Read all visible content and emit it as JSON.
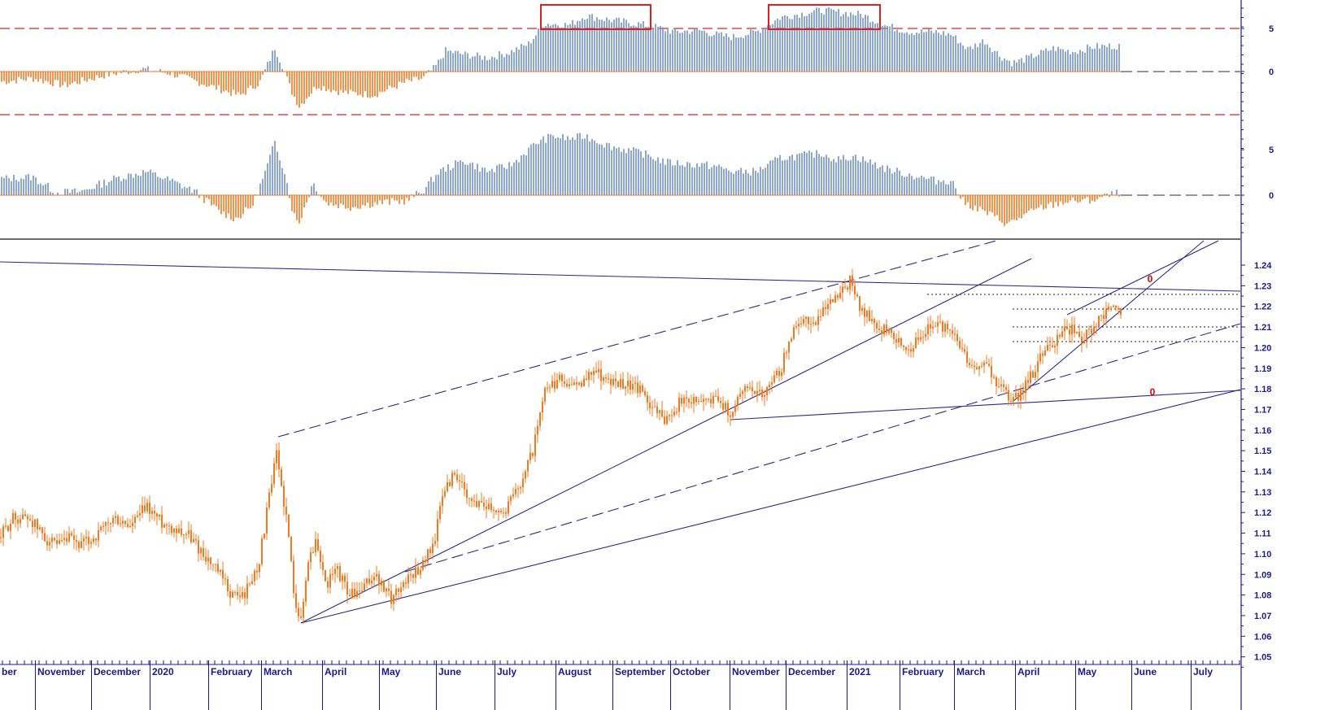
{
  "colors": {
    "positive_bar": "#6f93c4",
    "negative_bar": "#f07a1f",
    "price": "#f07a1f",
    "trendline": "#2a2a8a",
    "threshold": "#e02020",
    "highlight_box": "#e02020",
    "axis_text": "#1a1a8c"
  },
  "chart_data": [
    {
      "type": "bar",
      "panel": "oscillator-1",
      "title": "",
      "yticks": [
        5,
        0
      ],
      "threshold_lines": [
        5,
        -5
      ],
      "zero_line": "dashed",
      "ylim": [
        -8,
        8
      ],
      "highlight_boxes": [
        {
          "from": "August",
          "to": "September"
        },
        {
          "from": "December",
          "to": "January"
        }
      ],
      "anchors": [
        [
          0,
          -1.2
        ],
        [
          40,
          -0.8
        ],
        [
          80,
          -1.6
        ],
        [
          130,
          -0.4
        ],
        [
          175,
          0.3
        ],
        [
          210,
          -0.2
        ],
        [
          250,
          -1.4
        ],
        [
          295,
          -2.8
        ],
        [
          320,
          -1.2
        ],
        [
          338,
          2.8
        ],
        [
          348,
          0.5
        ],
        [
          358,
          -2.2
        ],
        [
          368,
          -4.0
        ],
        [
          390,
          -1.6
        ],
        [
          420,
          -2.4
        ],
        [
          460,
          -2.7
        ],
        [
          500,
          -1.2
        ],
        [
          520,
          -0.8
        ],
        [
          535,
          0.5
        ],
        [
          548,
          2.4
        ],
        [
          570,
          2.0
        ],
        [
          600,
          1.6
        ],
        [
          625,
          2.2
        ],
        [
          650,
          3.2
        ],
        [
          670,
          5.6
        ],
        [
          700,
          5.4
        ],
        [
          720,
          6.5
        ],
        [
          750,
          6.0
        ],
        [
          780,
          5.6
        ],
        [
          800,
          5.3
        ],
        [
          830,
          4.6
        ],
        [
          860,
          4.8
        ],
        [
          880,
          4.3
        ],
        [
          900,
          4.0
        ],
        [
          930,
          4.6
        ],
        [
          960,
          6.3
        ],
        [
          990,
          6.8
        ],
        [
          1010,
          7.1
        ],
        [
          1040,
          6.8
        ],
        [
          1060,
          6.6
        ],
        [
          1090,
          5.3
        ],
        [
          1120,
          4.6
        ],
        [
          1150,
          4.6
        ],
        [
          1170,
          4.3
        ],
        [
          1190,
          2.6
        ],
        [
          1210,
          3.6
        ],
        [
          1230,
          1.8
        ],
        [
          1245,
          1.0
        ],
        [
          1265,
          1.6
        ],
        [
          1295,
          2.7
        ],
        [
          1320,
          2.3
        ],
        [
          1345,
          2.9
        ],
        [
          1378,
          3.0
        ]
      ]
    },
    {
      "type": "bar",
      "panel": "oscillator-2",
      "title": "",
      "yticks": [
        5,
        0
      ],
      "zero_line": "dashed",
      "ylim": [
        -4,
        8.5
      ],
      "anchors": [
        [
          0,
          1.8
        ],
        [
          40,
          2.0
        ],
        [
          70,
          0.3
        ],
        [
          100,
          0.4
        ],
        [
          140,
          1.8
        ],
        [
          180,
          2.6
        ],
        [
          210,
          1.6
        ],
        [
          240,
          0.4
        ],
        [
          270,
          -1.8
        ],
        [
          290,
          -2.6
        ],
        [
          310,
          -1.2
        ],
        [
          325,
          2.2
        ],
        [
          338,
          5.8
        ],
        [
          350,
          2.6
        ],
        [
          360,
          -1.8
        ],
        [
          367,
          -3.2
        ],
        [
          385,
          1.4
        ],
        [
          400,
          -0.8
        ],
        [
          430,
          -1.3
        ],
        [
          460,
          -0.9
        ],
        [
          500,
          -0.6
        ],
        [
          520,
          0.5
        ],
        [
          540,
          2.6
        ],
        [
          570,
          3.8
        ],
        [
          600,
          2.6
        ],
        [
          630,
          3.4
        ],
        [
          660,
          5.8
        ],
        [
          680,
          6.5
        ],
        [
          700,
          6.2
        ],
        [
          720,
          6.5
        ],
        [
          750,
          5.4
        ],
        [
          790,
          4.6
        ],
        [
          820,
          3.6
        ],
        [
          850,
          3.4
        ],
        [
          880,
          3.2
        ],
        [
          900,
          2.6
        ],
        [
          930,
          2.6
        ],
        [
          960,
          4.1
        ],
        [
          990,
          4.4
        ],
        [
          1010,
          4.6
        ],
        [
          1030,
          3.9
        ],
        [
          1050,
          4.3
        ],
        [
          1070,
          3.6
        ],
        [
          1090,
          2.9
        ],
        [
          1120,
          2.2
        ],
        [
          1150,
          1.6
        ],
        [
          1170,
          1.6
        ],
        [
          1185,
          -0.8
        ],
        [
          1210,
          -1.8
        ],
        [
          1240,
          -3.2
        ],
        [
          1255,
          -2.4
        ],
        [
          1280,
          -1.4
        ],
        [
          1310,
          -0.7
        ],
        [
          1340,
          -0.6
        ],
        [
          1378,
          0.3
        ]
      ]
    },
    {
      "type": "line",
      "panel": "price",
      "title": "",
      "ylim": [
        1.05,
        1.24
      ],
      "yticks": [
        1.24,
        1.23,
        1.22,
        1.21,
        1.2,
        1.19,
        1.18,
        1.17,
        1.16,
        1.15,
        1.14,
        1.13,
        1.12,
        1.11,
        1.1,
        1.09,
        1.08,
        1.07,
        1.06,
        1.05
      ],
      "x_labels": [
        "ber",
        "November",
        "December",
        "2020",
        "February",
        "March",
        "April",
        "May",
        "June",
        "July",
        "August",
        "September",
        "October",
        "November",
        "December",
        "2021",
        "February",
        "March",
        "April",
        "May",
        "June",
        "July"
      ],
      "anchors": [
        [
          0,
          1.108
        ],
        [
          15,
          1.117
        ],
        [
          35,
          1.118
        ],
        [
          55,
          1.108
        ],
        [
          70,
          1.103
        ],
        [
          85,
          1.107
        ],
        [
          100,
          1.104
        ],
        [
          120,
          1.109
        ],
        [
          140,
          1.117
        ],
        [
          160,
          1.113
        ],
        [
          180,
          1.123
        ],
        [
          200,
          1.115
        ],
        [
          230,
          1.11
        ],
        [
          250,
          1.1
        ],
        [
          270,
          1.09
        ],
        [
          285,
          1.08
        ],
        [
          300,
          1.08
        ],
        [
          318,
          1.095
        ],
        [
          330,
          1.125
        ],
        [
          340,
          1.148
        ],
        [
          352,
          1.118
        ],
        [
          362,
          1.08
        ],
        [
          370,
          1.067
        ],
        [
          380,
          1.1
        ],
        [
          390,
          1.106
        ],
        [
          400,
          1.085
        ],
        [
          415,
          1.092
        ],
        [
          430,
          1.08
        ],
        [
          445,
          1.082
        ],
        [
          460,
          1.09
        ],
        [
          480,
          1.078
        ],
        [
          500,
          1.088
        ],
        [
          520,
          1.095
        ],
        [
          535,
          1.108
        ],
        [
          545,
          1.13
        ],
        [
          560,
          1.14
        ],
        [
          575,
          1.125
        ],
        [
          595,
          1.125
        ],
        [
          620,
          1.12
        ],
        [
          640,
          1.135
        ],
        [
          655,
          1.15
        ],
        [
          670,
          1.178
        ],
        [
          690,
          1.185
        ],
        [
          710,
          1.18
        ],
        [
          730,
          1.19
        ],
        [
          750,
          1.183
        ],
        [
          770,
          1.183
        ],
        [
          790,
          1.178
        ],
        [
          815,
          1.165
        ],
        [
          835,
          1.173
        ],
        [
          860,
          1.175
        ],
        [
          880,
          1.175
        ],
        [
          900,
          1.168
        ],
        [
          915,
          1.182
        ],
        [
          940,
          1.178
        ],
        [
          960,
          1.19
        ],
        [
          980,
          1.213
        ],
        [
          1000,
          1.212
        ],
        [
          1020,
          1.221
        ],
        [
          1045,
          1.232
        ],
        [
          1060,
          1.218
        ],
        [
          1080,
          1.21
        ],
        [
          1100,
          1.205
        ],
        [
          1120,
          1.2
        ],
        [
          1140,
          1.21
        ],
        [
          1160,
          1.21
        ],
        [
          1175,
          1.205
        ],
        [
          1195,
          1.19
        ],
        [
          1215,
          1.19
        ],
        [
          1230,
          1.18
        ],
        [
          1245,
          1.173
        ],
        [
          1265,
          1.185
        ],
        [
          1280,
          1.195
        ],
        [
          1300,
          1.205
        ],
        [
          1320,
          1.21
        ],
        [
          1330,
          1.205
        ],
        [
          1345,
          1.21
        ],
        [
          1365,
          1.22
        ],
        [
          1378,
          1.218
        ]
      ]
    }
  ]
}
